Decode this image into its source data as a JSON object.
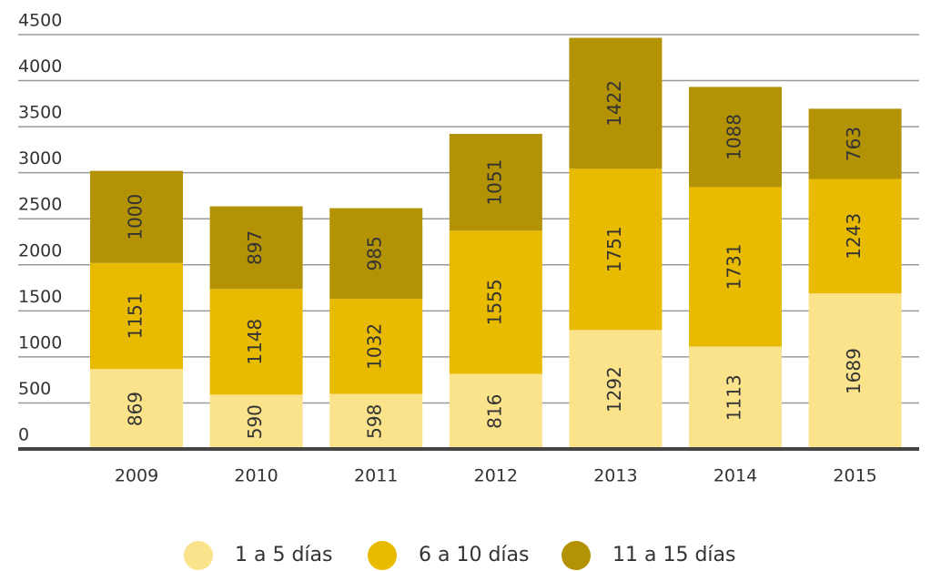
{
  "chart_data": {
    "type": "stacked_bar",
    "categories": [
      "2009",
      "2010",
      "2011",
      "2012",
      "2013",
      "2014",
      "2015"
    ],
    "series": [
      {
        "name": "1 a 5 días",
        "color": "#fbe38b",
        "values": [
          869,
          590,
          598,
          816,
          1292,
          1113,
          1689
        ]
      },
      {
        "name": "6 a 10 días",
        "color": "#e8bb00",
        "values": [
          1151,
          1148,
          1032,
          1555,
          1751,
          1731,
          1243
        ]
      },
      {
        "name": "11 a 15 días",
        "color": "#b39204",
        "values": [
          1000,
          897,
          985,
          1051,
          1422,
          1088,
          763
        ]
      }
    ],
    "ylim": [
      0,
      4500
    ],
    "yticks": [
      0,
      500,
      1000,
      1500,
      2000,
      2500,
      3000,
      3500,
      4000,
      4500
    ],
    "grid": true,
    "legend": "bottom"
  }
}
